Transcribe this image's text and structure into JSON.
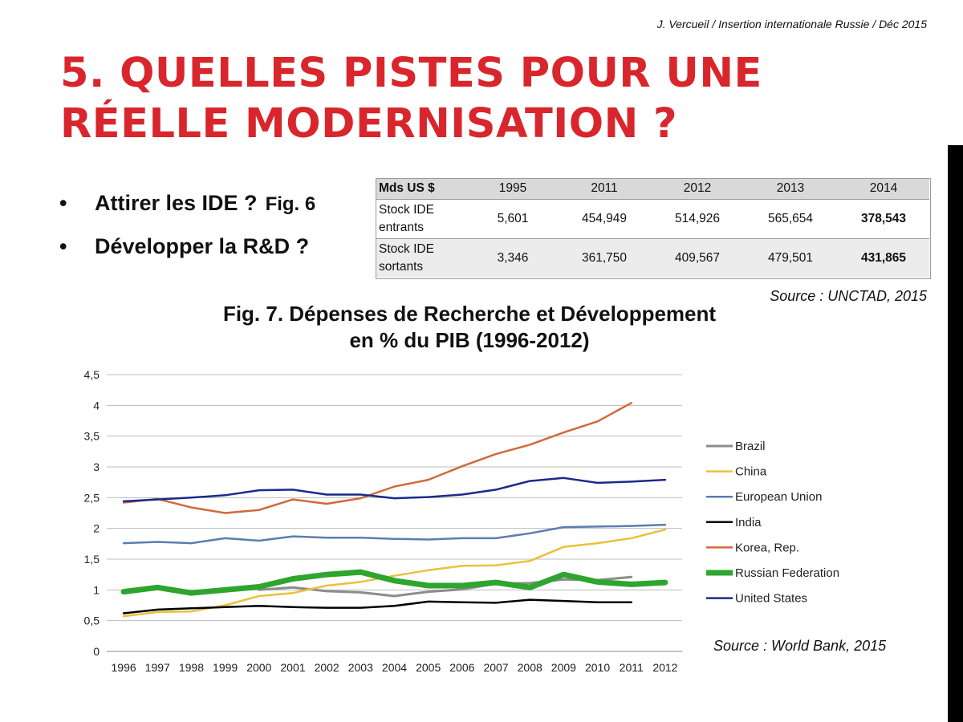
{
  "header": {
    "author": "J. Vercueil / Insertion internationale Russie / Déc 2015",
    "title_line1": "5. Quelles pistes pour une",
    "title_line2": "réelle modernisation ?"
  },
  "bullets": [
    {
      "text": "Attirer les IDE ?",
      "figref": "Fig. 6"
    },
    {
      "text": "Développer la R&D ?"
    }
  ],
  "table": {
    "header": [
      "Mds US $",
      "1995",
      "2011",
      "2012",
      "2013",
      "2014"
    ],
    "rows": [
      {
        "label_line1": "Stock IDE",
        "label_line2": "entrants",
        "values": [
          "5,601",
          "454,949",
          "514,926",
          "565,654",
          "378,543"
        ]
      },
      {
        "label_line1": "Stock IDE",
        "label_line2": "sortants",
        "values": [
          "3,346",
          "361,750",
          "409,567",
          "479,501",
          "431,865"
        ]
      }
    ],
    "source": "Source : UNCTAD, 2015"
  },
  "chart_data": {
    "type": "line",
    "title_line1": "Fig. 7. Dépenses de Recherche et Développement",
    "title_line2": "en % du PIB (1996-2012)",
    "source": "Source : World Bank, 2015",
    "categories": [
      "1996",
      "1997",
      "1998",
      "1999",
      "2000",
      "2001",
      "2002",
      "2003",
      "2004",
      "2005",
      "2006",
      "2007",
      "2008",
      "2009",
      "2010",
      "2011",
      "2012"
    ],
    "ylim": [
      0,
      4.5
    ],
    "yticks": [
      "0",
      "0,5",
      "1",
      "1,5",
      "2",
      "2,5",
      "3",
      "3,5",
      "4",
      "4,5"
    ],
    "grid": true,
    "legend_position": "right",
    "series": [
      {
        "name": "Brazil",
        "color": "#8c8c8c",
        "width": 3,
        "values": [
          null,
          null,
          null,
          null,
          1.0,
          1.04,
          0.98,
          0.96,
          0.9,
          0.97,
          1.01,
          1.1,
          1.11,
          1.17,
          1.16,
          1.21,
          null
        ]
      },
      {
        "name": "China",
        "color": "#e8c23b",
        "width": 2.5,
        "values": [
          0.57,
          0.64,
          0.65,
          0.75,
          0.9,
          0.95,
          1.07,
          1.13,
          1.23,
          1.32,
          1.39,
          1.4,
          1.47,
          1.7,
          1.76,
          1.84,
          1.98
        ]
      },
      {
        "name": "European Union",
        "color": "#5b7db1",
        "width": 2.5,
        "values": [
          1.76,
          1.78,
          1.76,
          1.84,
          1.8,
          1.87,
          1.85,
          1.85,
          1.83,
          1.82,
          1.84,
          1.84,
          1.92,
          2.02,
          2.03,
          2.04,
          2.06
        ]
      },
      {
        "name": "India",
        "color": "#000000",
        "width": 2.5,
        "values": [
          0.62,
          0.68,
          0.7,
          0.72,
          0.74,
          0.72,
          0.71,
          0.71,
          0.74,
          0.81,
          0.8,
          0.79,
          0.84,
          0.82,
          0.8,
          0.8,
          null
        ]
      },
      {
        "name": "Korea, Rep.",
        "color": "#d2693a",
        "width": 2.5,
        "values": [
          2.42,
          2.48,
          2.34,
          2.25,
          2.3,
          2.47,
          2.4,
          2.49,
          2.68,
          2.79,
          3.01,
          3.21,
          3.36,
          3.56,
          3.74,
          4.04,
          null
        ]
      },
      {
        "name": "Russian Federation",
        "color": "#2ea52e",
        "width": 7,
        "values": [
          0.97,
          1.04,
          0.95,
          1.0,
          1.05,
          1.18,
          1.25,
          1.29,
          1.15,
          1.07,
          1.07,
          1.12,
          1.04,
          1.25,
          1.13,
          1.09,
          1.12
        ]
      },
      {
        "name": "United States",
        "color": "#1a2a8c",
        "width": 2.5,
        "values": [
          2.44,
          2.47,
          2.5,
          2.54,
          2.62,
          2.63,
          2.55,
          2.55,
          2.49,
          2.51,
          2.55,
          2.63,
          2.77,
          2.82,
          2.74,
          2.76,
          2.79
        ]
      }
    ]
  }
}
